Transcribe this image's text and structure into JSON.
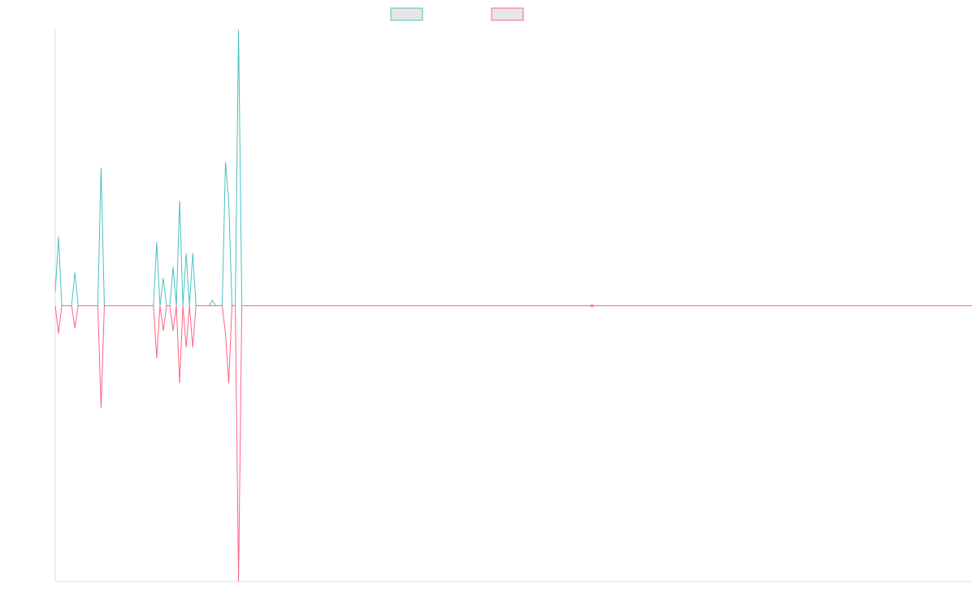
{
  "chart_data": {
    "type": "line",
    "title": "",
    "xlabel": "",
    "ylabel": "",
    "grid": false,
    "legend_position": "top-center",
    "ylim": [
      -100,
      100
    ],
    "colors": {
      "series_up": "#4BC0C0",
      "series_down": "#FF6384",
      "legend_fill": "#E6E6E6",
      "axis": "#E0E0E0"
    },
    "series": [
      {
        "name": "",
        "color_key": "series_up",
        "points": [
          [
            0,
            5
          ],
          [
            1,
            25
          ],
          [
            2,
            0
          ],
          [
            5,
            0
          ],
          [
            6,
            12
          ],
          [
            7,
            0
          ],
          [
            13,
            0
          ],
          [
            14,
            50
          ],
          [
            15,
            0
          ],
          [
            30,
            0
          ],
          [
            31,
            23
          ],
          [
            32,
            0
          ],
          [
            33,
            10
          ],
          [
            34,
            0
          ],
          [
            35,
            0
          ],
          [
            36,
            14
          ],
          [
            37,
            0
          ],
          [
            38,
            38
          ],
          [
            39,
            0
          ],
          [
            40,
            19
          ],
          [
            41,
            0
          ],
          [
            42,
            19
          ],
          [
            43,
            0
          ],
          [
            47,
            0
          ],
          [
            48,
            2
          ],
          [
            49,
            0
          ],
          [
            51,
            0
          ],
          [
            52,
            52
          ],
          [
            53,
            38
          ],
          [
            54,
            0
          ],
          [
            55,
            0
          ],
          [
            56,
            100
          ],
          [
            57,
            0
          ],
          [
            164,
            0
          ],
          [
            165,
            0
          ],
          [
            280,
            0
          ]
        ]
      },
      {
        "name": "",
        "color_key": "series_down",
        "points": [
          [
            0,
            0
          ],
          [
            1,
            -10
          ],
          [
            2,
            0
          ],
          [
            5,
            0
          ],
          [
            6,
            -8
          ],
          [
            7,
            0
          ],
          [
            13,
            0
          ],
          [
            14,
            -37
          ],
          [
            15,
            0
          ],
          [
            30,
            0
          ],
          [
            31,
            -19
          ],
          [
            32,
            0
          ],
          [
            33,
            -9
          ],
          [
            34,
            0
          ],
          [
            35,
            0
          ],
          [
            36,
            -9
          ],
          [
            37,
            0
          ],
          [
            38,
            -28
          ],
          [
            39,
            0
          ],
          [
            40,
            -15
          ],
          [
            41,
            0
          ],
          [
            42,
            -15
          ],
          [
            43,
            0
          ],
          [
            47,
            0
          ],
          [
            48,
            0
          ],
          [
            49,
            0
          ],
          [
            51,
            0
          ],
          [
            52,
            -10
          ],
          [
            53,
            -28
          ],
          [
            54,
            0
          ],
          [
            55,
            0
          ],
          [
            56,
            -100
          ],
          [
            57,
            0
          ],
          [
            164,
            0
          ],
          [
            165,
            0
          ],
          [
            280,
            0
          ]
        ]
      }
    ],
    "xlim": [
      0,
      280
    ]
  }
}
